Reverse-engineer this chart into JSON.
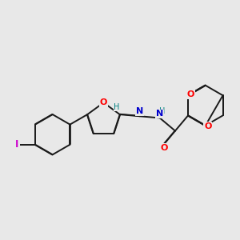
{
  "bg_color": "#e8e8e8",
  "bond_color": "#1a1a1a",
  "bond_width": 1.4,
  "atom_colors": {
    "O": "#ff0000",
    "N": "#0000cd",
    "I": "#cc00cc",
    "H": "#008080"
  },
  "figsize": [
    3.0,
    3.0
  ],
  "dpi": 100
}
